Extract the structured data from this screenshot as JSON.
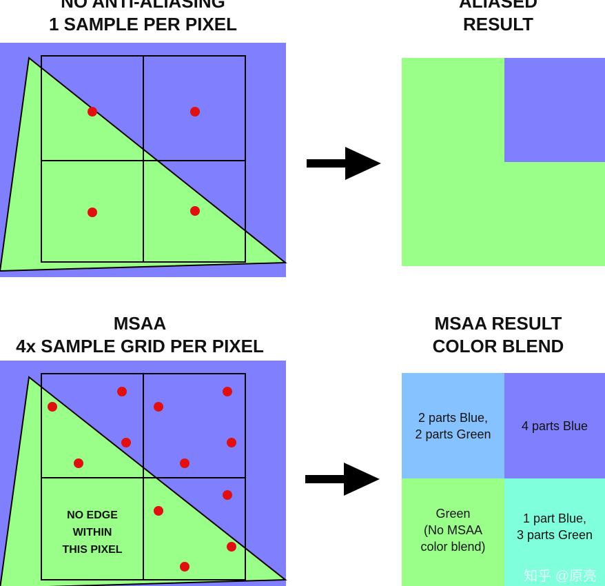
{
  "colors": {
    "blue": "#8080ff",
    "green": "#99ff88",
    "light_blue": "#86c2ff",
    "cyan": "#80ffdd",
    "sample_dot": "#e01010",
    "grid_line": "#000000"
  },
  "top_left": {
    "title_line1": "NO ANTI-ALIASING",
    "title_line2": "1 SAMPLE PER PIXEL"
  },
  "top_right": {
    "title_line1": "ALIASED",
    "title_line2": "RESULT"
  },
  "bottom_left": {
    "title_line1": "MSAA",
    "title_line2": "4x SAMPLE GRID PER PIXEL",
    "no_edge_line1": "NO EDGE",
    "no_edge_line2": "WITHIN",
    "no_edge_line3": "THIS PIXEL"
  },
  "bottom_right": {
    "title_line1": "MSAA RESULT",
    "title_line2": "COLOR BLEND",
    "cell_tl_line1": "2 parts Blue,",
    "cell_tl_line2": "2 parts Green",
    "cell_tr_line1": "4 parts Blue",
    "cell_bl_line1": "Green",
    "cell_bl_line2": "(No MSAA",
    "cell_bl_line3": "color blend)",
    "cell_br_line1": "1 part Blue,",
    "cell_br_line2": "3 parts Green"
  },
  "watermark": "知乎 @原亮",
  "icons": [
    "right-arrow-icon",
    "right-arrow-icon"
  ]
}
